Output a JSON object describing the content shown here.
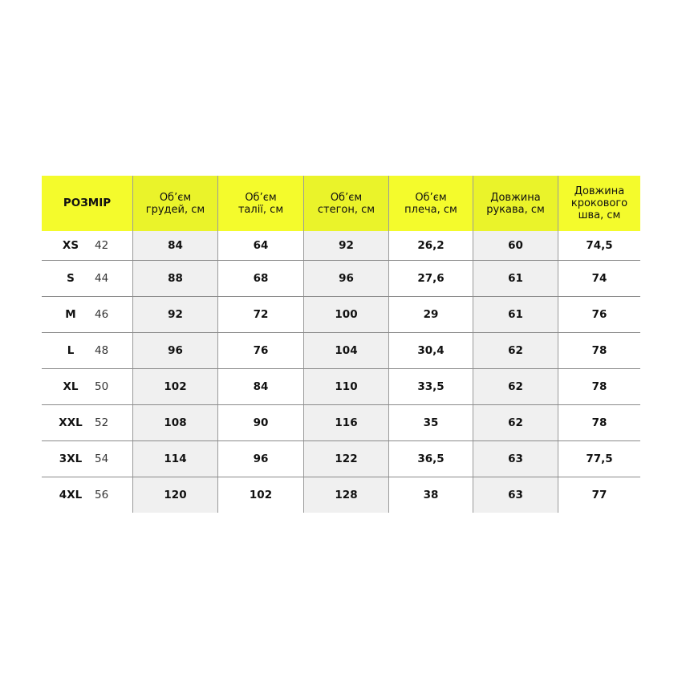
{
  "headers": [
    "РОЗМІР",
    "Об’єм\nгрудей, см",
    "Об’єм\nталії, см",
    "Об’єм\nстегон, см",
    "Об’єм\nплеча, см",
    "Довжина\nрукава, см",
    "Довжина\nкрокового\nшва, см"
  ],
  "colors": {
    "header_yellow": "#f4fb2c",
    "shaded_column": "#f0f0f0"
  },
  "rows": [
    {
      "size": "XS",
      "num": "42",
      "values": [
        "84",
        "64",
        "92",
        "26,2",
        "60",
        "74,5"
      ]
    },
    {
      "size": "S",
      "num": "44",
      "values": [
        "88",
        "68",
        "96",
        "27,6",
        "61",
        "74"
      ]
    },
    {
      "size": "M",
      "num": "46",
      "values": [
        "92",
        "72",
        "100",
        "29",
        "61",
        "76"
      ]
    },
    {
      "size": "L",
      "num": "48",
      "values": [
        "96",
        "76",
        "104",
        "30,4",
        "62",
        "78"
      ]
    },
    {
      "size": "XL",
      "num": "50",
      "values": [
        "102",
        "84",
        "110",
        "33,5",
        "62",
        "78"
      ]
    },
    {
      "size": "XXL",
      "num": "52",
      "values": [
        "108",
        "90",
        "116",
        "35",
        "62",
        "78"
      ]
    },
    {
      "size": "3XL",
      "num": "54",
      "values": [
        "114",
        "96",
        "122",
        "36,5",
        "63",
        "77,5"
      ]
    },
    {
      "size": "4XL",
      "num": "56",
      "values": [
        "120",
        "102",
        "128",
        "38",
        "63",
        "77"
      ]
    }
  ]
}
